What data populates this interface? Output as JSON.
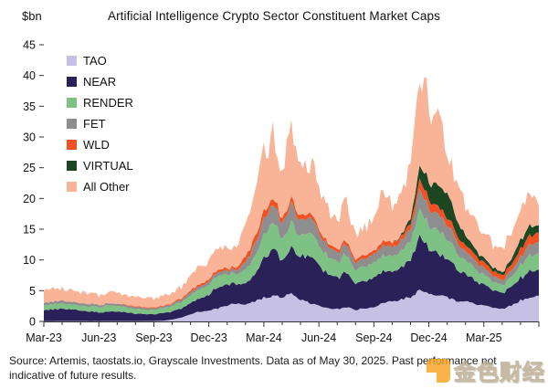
{
  "title": "Artificial Intelligence Crypto Sector Constituent Market Caps",
  "y_axis_unit": "$bn",
  "footer_text": "Source: Artemis, taostats.io, Grayscale Investments. Data as of May 30, 2025. Past performance not indicative of future results.",
  "watermark": {
    "text": "金色财经",
    "logo_color": "#f7a11c"
  },
  "colors": {
    "text": "#111111",
    "axis": "#333333",
    "background": "#ffffff"
  },
  "chart_data": {
    "type": "area",
    "stacked": true,
    "grid": false,
    "legend_position": "top-left",
    "title": "Artificial Intelligence Crypto Sector Constituent Market Caps",
    "ylabel": "$bn",
    "ylim": [
      0,
      45
    ],
    "y_ticks": [
      0,
      5,
      10,
      15,
      20,
      25,
      30,
      35,
      40,
      45
    ],
    "x_tick_labels": [
      "Mar-23",
      "Jun-23",
      "Sep-23",
      "Dec-23",
      "Mar-24",
      "Jun-24",
      "Sep-24",
      "Dec-24",
      "Mar-25"
    ],
    "x_range_months": 27,
    "x_tick_every_months": 3,
    "x_minor_tick_every_months": 1,
    "sample_interval": "half-month from Mar-2023 to May-30-2025",
    "series": [
      {
        "name": "TAO",
        "color": "#c7c0e5",
        "values": [
          0.05,
          0.05,
          0.06,
          0.06,
          0.06,
          0.05,
          0.05,
          0.06,
          0.06,
          0.06,
          0.06,
          0.07,
          0.07,
          0.12,
          0.3,
          0.6,
          1.2,
          1.6,
          1.8,
          2.1,
          2.6,
          2.9,
          2.7,
          3.2,
          3.9,
          4.2,
          4.0,
          4.6,
          3.6,
          3.0,
          2.6,
          2.2,
          2.0,
          2.3,
          1.9,
          2.1,
          2.4,
          2.9,
          3.3,
          3.6,
          4.0,
          5.0,
          4.6,
          4.2,
          3.9,
          3.4,
          3.2,
          2.9,
          2.6,
          2.2,
          2.0,
          2.6,
          3.4,
          3.9,
          4.0
        ]
      },
      {
        "name": "NEAR",
        "color": "#2b2159",
        "values": [
          1.8,
          1.9,
          2.0,
          1.9,
          1.7,
          1.6,
          1.4,
          1.5,
          1.5,
          1.4,
          1.2,
          1.1,
          1.1,
          1.2,
          1.3,
          1.5,
          1.8,
          2.2,
          2.6,
          3.6,
          3.4,
          3.2,
          3.4,
          4.2,
          6.5,
          7.5,
          6.2,
          7.2,
          6.8,
          7.8,
          6.5,
          5.5,
          5.0,
          5.8,
          4.2,
          4.6,
          4.8,
          5.2,
          5.0,
          5.4,
          6.2,
          8.5,
          7.5,
          6.8,
          6.2,
          5.2,
          4.4,
          3.8,
          3.3,
          2.9,
          2.6,
          3.0,
          3.6,
          4.4,
          4.2
        ]
      },
      {
        "name": "RENDER",
        "color": "#7dc284",
        "values": [
          0.75,
          0.85,
          0.9,
          0.85,
          0.8,
          0.85,
          0.9,
          1.0,
          0.95,
          0.8,
          0.75,
          0.7,
          0.75,
          0.8,
          0.9,
          1.1,
          1.3,
          1.5,
          1.6,
          1.9,
          1.7,
          1.6,
          2.2,
          3.0,
          3.9,
          4.4,
          3.6,
          4.0,
          3.4,
          3.8,
          3.2,
          2.8,
          2.5,
          2.9,
          2.2,
          2.4,
          2.3,
          2.5,
          2.4,
          2.6,
          3.0,
          4.4,
          3.8,
          3.6,
          3.2,
          2.7,
          2.2,
          1.9,
          1.6,
          1.4,
          1.3,
          1.6,
          2.0,
          2.5,
          2.5
        ]
      },
      {
        "name": "FET",
        "color": "#8e8e8e",
        "values": [
          0.4,
          0.42,
          0.45,
          0.42,
          0.4,
          0.38,
          0.35,
          0.35,
          0.35,
          0.32,
          0.3,
          0.28,
          0.25,
          0.27,
          0.3,
          0.38,
          0.45,
          0.5,
          0.55,
          0.58,
          0.6,
          0.65,
          1.2,
          2.0,
          2.6,
          3.0,
          2.4,
          3.1,
          2.5,
          2.6,
          2.0,
          1.7,
          1.5,
          1.7,
          1.2,
          1.3,
          1.4,
          1.6,
          1.5,
          1.6,
          1.9,
          3.3,
          2.8,
          2.6,
          2.3,
          1.9,
          1.5,
          1.3,
          1.1,
          0.9,
          0.8,
          1.0,
          1.4,
          1.8,
          1.8
        ]
      },
      {
        "name": "WLD",
        "color": "#f05223",
        "values": [
          0,
          0,
          0,
          0,
          0,
          0,
          0,
          0,
          0,
          0.12,
          0.13,
          0.12,
          0.12,
          0.13,
          0.15,
          0.2,
          0.3,
          0.35,
          0.35,
          0.4,
          0.35,
          0.4,
          0.9,
          1.1,
          1.2,
          1.0,
          0.8,
          0.9,
          0.8,
          0.7,
          0.6,
          0.5,
          0.5,
          0.6,
          0.5,
          0.55,
          0.6,
          0.7,
          0.7,
          0.8,
          1.0,
          1.6,
          1.4,
          1.3,
          1.2,
          1.1,
          1.0,
          0.95,
          0.9,
          0.85,
          0.8,
          1.0,
          1.3,
          1.5,
          1.5
        ]
      },
      {
        "name": "VIRTUAL",
        "color": "#1d4723",
        "values": [
          0,
          0,
          0,
          0,
          0,
          0,
          0,
          0,
          0,
          0,
          0,
          0,
          0,
          0,
          0,
          0,
          0,
          0,
          0,
          0,
          0,
          0,
          0,
          0,
          0,
          0,
          0,
          0,
          0,
          0,
          0,
          0,
          0,
          0,
          0,
          0,
          0,
          0,
          0,
          0.2,
          0.8,
          2.2,
          3.0,
          3.4,
          4.0,
          2.6,
          1.6,
          1.0,
          0.7,
          0.55,
          0.5,
          0.8,
          1.5,
          1.6,
          1.2
        ]
      },
      {
        "name": "All Other",
        "color": "#f9b397",
        "values": [
          1.9,
          2.1,
          2.0,
          1.9,
          1.7,
          1.6,
          1.5,
          1.7,
          1.8,
          1.6,
          1.5,
          1.4,
          1.45,
          1.5,
          1.7,
          2.0,
          2.4,
          2.7,
          3.0,
          3.6,
          3.4,
          3.2,
          4.5,
          6.5,
          9.5,
          10.5,
          8.0,
          11.5,
          7.5,
          8.0,
          7.0,
          5.5,
          5.0,
          6.5,
          3.8,
          4.5,
          5.0,
          8.0,
          6.0,
          6.8,
          9.0,
          15.5,
          13.5,
          11.5,
          6.5,
          5.5,
          5.0,
          4.5,
          4.2,
          3.8,
          4.0,
          4.5,
          5.5,
          6.0,
          2.8
        ]
      }
    ]
  }
}
